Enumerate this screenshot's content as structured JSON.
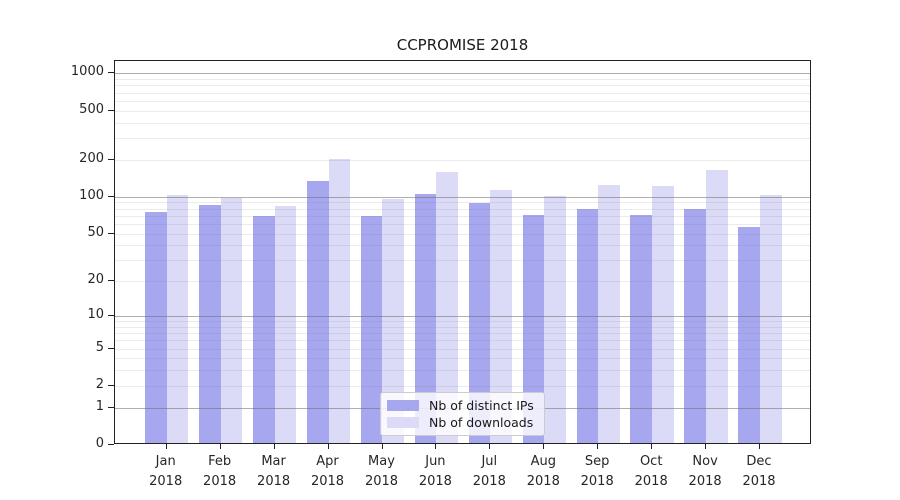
{
  "title": "CCPROMISE 2018",
  "chart_data": {
    "type": "bar",
    "title": "CCPROMISE 2018",
    "categories": [
      "Jan",
      "Feb",
      "Mar",
      "Apr",
      "May",
      "Jun",
      "Jul",
      "Aug",
      "Sep",
      "Oct",
      "Nov",
      "Dec"
    ],
    "year_label": "2018",
    "series": [
      {
        "name": "Nb of distinct IPs",
        "color": "#a7a7f0",
        "values": [
          73,
          82,
          67,
          129,
          67,
          102,
          86,
          68,
          77,
          68,
          76,
          54
        ]
      },
      {
        "name": "Nb of downloads",
        "color": "#dbdbf8",
        "values": [
          100,
          95,
          81,
          195,
          93,
          152,
          110,
          97,
          121,
          117,
          160,
          100
        ]
      }
    ],
    "y_ticks": [
      0,
      1,
      2,
      5,
      10,
      20,
      50,
      100,
      200,
      500,
      1000
    ],
    "y_scale": "log10(value+1)",
    "y_axis_top_value": 1260,
    "xlabel": "",
    "ylabel": "",
    "grid": "horizontal; major lines at 1,10,100,1000; minor at 2-9 per decade",
    "legend_position": "bottom-center",
    "colors": {
      "distinct_ips": "#a7a7f0",
      "downloads": "#dbdbf8"
    }
  }
}
